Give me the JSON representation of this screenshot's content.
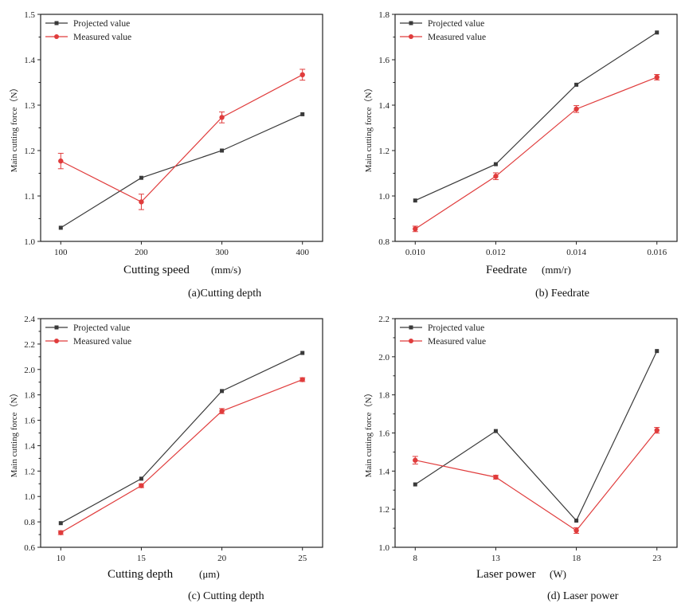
{
  "chart_data": [
    {
      "id": "a",
      "type": "line",
      "caption": "(a)Cutting depth",
      "xlabel": "Cutting speed",
      "xunit": "(mm/s)",
      "ylabel": "Main cutting force（N）",
      "x": [
        100,
        200,
        300,
        400
      ],
      "x_tick_labels": [
        "100",
        "200",
        "300",
        "400"
      ],
      "xlim": [
        75,
        425
      ],
      "ylim": [
        1.0,
        1.5
      ],
      "y_ticks": [
        1.0,
        1.1,
        1.2,
        1.3,
        1.4,
        1.5
      ],
      "y_tick_labels": [
        "1.0",
        "1.1",
        "1.2",
        "1.3",
        "1.4",
        "1.5"
      ],
      "legend_position": "top-left",
      "grid": false,
      "series": [
        {
          "name": "Projected value",
          "color": "#3a3a3a",
          "marker": "square",
          "values": [
            1.03,
            1.14,
            1.2,
            1.28
          ]
        },
        {
          "name": "Measured value",
          "color": "#e03c3c",
          "marker": "circle",
          "values": [
            1.177,
            1.087,
            1.273,
            1.367
          ],
          "errors": [
            0.017,
            0.017,
            0.012,
            0.012
          ]
        }
      ]
    },
    {
      "id": "b",
      "type": "line",
      "caption": "(b) Feedrate",
      "xlabel": "Feedrate",
      "xunit": "(mm/r)",
      "ylabel": "Main cutting force（N）",
      "x": [
        0.01,
        0.012,
        0.014,
        0.016
      ],
      "x_tick_labels": [
        "0.010",
        "0.012",
        "0.014",
        "0.016"
      ],
      "xlim": [
        0.0095,
        0.0165
      ],
      "ylim": [
        0.8,
        1.8
      ],
      "y_ticks": [
        0.8,
        1.0,
        1.2,
        1.4,
        1.6,
        1.8
      ],
      "y_tick_labels": [
        "0.8",
        "1.0",
        "1.2",
        "1.4",
        "1.6",
        "1.8"
      ],
      "legend_position": "top-left",
      "grid": false,
      "series": [
        {
          "name": "Projected value",
          "color": "#3a3a3a",
          "marker": "square",
          "values": [
            0.98,
            1.14,
            1.49,
            1.72
          ]
        },
        {
          "name": "Measured value",
          "color": "#e03c3c",
          "marker": "circle",
          "values": [
            0.855,
            1.087,
            1.383,
            1.523
          ],
          "errors": [
            0.012,
            0.015,
            0.015,
            0.012
          ]
        }
      ]
    },
    {
      "id": "c",
      "type": "line",
      "caption": "(c) Cutting depth",
      "xlabel": "Cutting depth",
      "xunit": "(μm)",
      "ylabel": "Main cutting force（N）",
      "x": [
        10,
        15,
        20,
        25
      ],
      "x_tick_labels": [
        "10",
        "15",
        "20",
        "25"
      ],
      "xlim": [
        8.75,
        26.25
      ],
      "ylim": [
        0.6,
        2.4
      ],
      "y_ticks": [
        0.6,
        0.8,
        1.0,
        1.2,
        1.4,
        1.6,
        1.8,
        2.0,
        2.2,
        2.4
      ],
      "y_tick_labels": [
        "0.6",
        "0.8",
        "1.0",
        "1.2",
        "1.4",
        "1.6",
        "1.8",
        "2.0",
        "2.2",
        "2.4"
      ],
      "legend_position": "top-left",
      "grid": false,
      "series": [
        {
          "name": "Projected value",
          "color": "#3a3a3a",
          "marker": "square",
          "values": [
            0.79,
            1.14,
            1.83,
            2.13
          ]
        },
        {
          "name": "Measured value",
          "color": "#e03c3c",
          "marker": "circle",
          "values": [
            0.715,
            1.085,
            1.672,
            1.92
          ],
          "errors": [
            0.015,
            0.015,
            0.02,
            0.015
          ]
        }
      ]
    },
    {
      "id": "d",
      "type": "line",
      "caption": "(d) Laser power",
      "xlabel": "Laser power",
      "xunit": "(W)",
      "ylabel": "Main cutting force（N）",
      "x": [
        8,
        13,
        18,
        23
      ],
      "x_tick_labels": [
        "8",
        "13",
        "18",
        "23"
      ],
      "xlim": [
        6.75,
        24.25
      ],
      "ylim": [
        1.0,
        2.2
      ],
      "y_ticks": [
        1.0,
        1.2,
        1.4,
        1.6,
        1.8,
        2.0,
        2.2
      ],
      "y_tick_labels": [
        "1.0",
        "1.2",
        "1.4",
        "1.6",
        "1.8",
        "2.0",
        "2.2"
      ],
      "legend_position": "top-left",
      "grid": false,
      "series": [
        {
          "name": "Projected value",
          "color": "#3a3a3a",
          "marker": "square",
          "values": [
            1.33,
            1.61,
            1.14,
            2.03
          ]
        },
        {
          "name": "Measured value",
          "color": "#e03c3c",
          "marker": "circle",
          "values": [
            1.457,
            1.368,
            1.088,
            1.614
          ],
          "errors": [
            0.02,
            0.01,
            0.015,
            0.015
          ]
        }
      ]
    }
  ]
}
